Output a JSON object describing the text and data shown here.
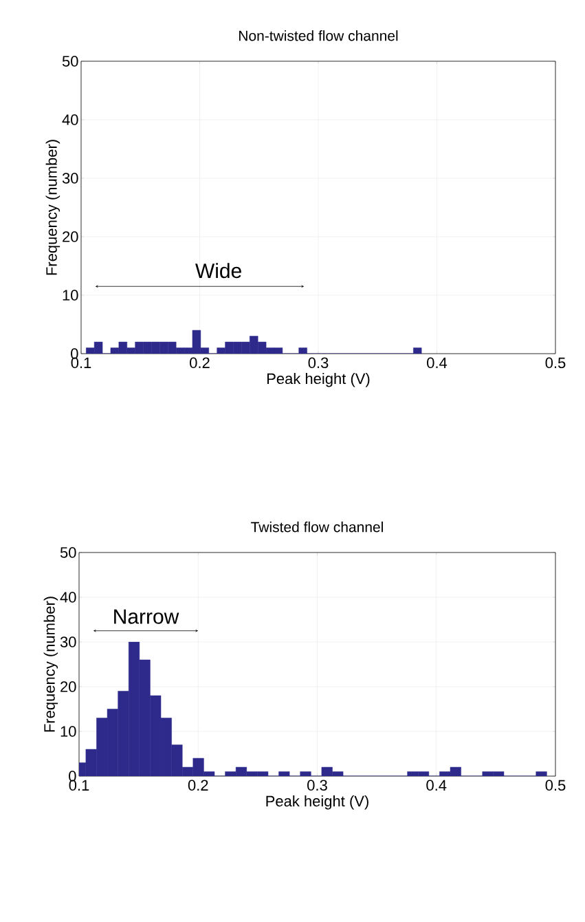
{
  "chart_data": [
    {
      "type": "histogram",
      "title": "Non-twisted flow channel",
      "xlabel": "Peak height (V)",
      "ylabel": "Frequency (number)",
      "color": "#2e2a8c",
      "bins": [
        0.1042,
        0.1111,
        0.118,
        0.1249,
        0.1318,
        0.1387,
        0.1456,
        0.1525,
        0.1594,
        0.1663,
        0.1732,
        0.1801,
        0.187,
        0.1939,
        0.2008,
        0.2077,
        0.2146,
        0.2215,
        0.2284,
        0.2353,
        0.2422,
        0.2491,
        0.256,
        0.2629,
        0.2698,
        0.2836,
        0.2905,
        0.3802,
        0.3871
      ],
      "values": [
        1,
        2,
        0,
        1,
        2,
        1,
        2,
        2,
        2,
        2,
        2,
        1,
        1,
        4,
        1,
        0,
        1,
        2,
        2,
        2,
        3,
        2,
        1,
        1,
        0,
        1,
        0,
        1
      ],
      "xlim": [
        0.1,
        0.5
      ],
      "ylim": [
        0,
        50
      ],
      "xticks": [
        0.1,
        0.2,
        0.3,
        0.4,
        0.5
      ],
      "yticks": [
        0,
        10,
        20,
        30,
        40,
        50
      ],
      "grid": true,
      "annotations": [
        "Wide"
      ]
    },
    {
      "type": "histogram",
      "title": "Twisted flow channel",
      "xlabel": "Peak height (V)",
      "ylabel": "Frequency (number)",
      "color": "#2e2a8c",
      "bins": [
        0.1,
        0.1057,
        0.1147,
        0.1237,
        0.1327,
        0.1417,
        0.1507,
        0.1597,
        0.1687,
        0.1777,
        0.1867,
        0.1957,
        0.2047,
        0.2137,
        0.2227,
        0.2317,
        0.2407,
        0.2497,
        0.2587,
        0.2677,
        0.2767,
        0.2857,
        0.2947,
        0.3037,
        0.3127,
        0.3217,
        0.3757,
        0.3847,
        0.3937,
        0.4027,
        0.4117,
        0.4207,
        0.4387,
        0.4477,
        0.4567,
        0.4837,
        0.4927
      ],
      "values": [
        3,
        6,
        13,
        15,
        19,
        30,
        26,
        18,
        13,
        7,
        2,
        4,
        1,
        0,
        1,
        2,
        1,
        1,
        0,
        1,
        0,
        1,
        0,
        2,
        1,
        0,
        1,
        1,
        0,
        1,
        2,
        0,
        1,
        1,
        0,
        1
      ],
      "xlim": [
        0.1,
        0.5
      ],
      "ylim": [
        0,
        50
      ],
      "xticks": [
        0.1,
        0.2,
        0.3,
        0.4,
        0.5
      ],
      "yticks": [
        0,
        10,
        20,
        30,
        40,
        50
      ],
      "grid": true,
      "annotations": [
        "Narrow"
      ]
    }
  ]
}
